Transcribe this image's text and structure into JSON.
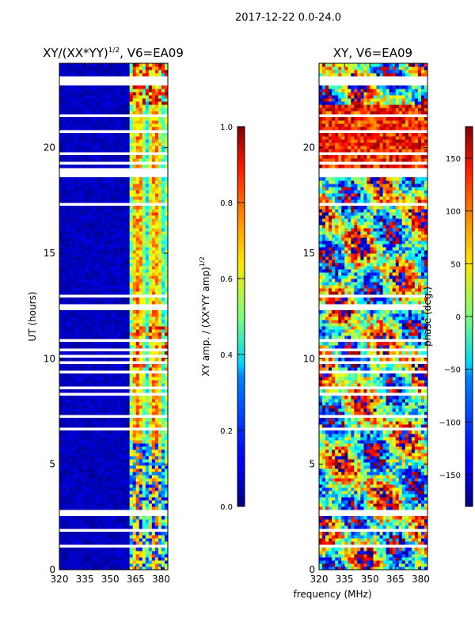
{
  "suptitle": "2017-12-22 0.0-24.0",
  "chart_data": [
    {
      "type": "heatmap",
      "title": "XY/(XX*YY)",
      "title_exponent": "1/2",
      "title_suffix": ", V6=EA09",
      "xlabel": "",
      "ylabel": "UT (hours)",
      "xlim": [
        320,
        384
      ],
      "ylim": [
        0,
        24
      ],
      "xticks": [
        320,
        335,
        350,
        365,
        380
      ],
      "yticks": [
        0,
        5,
        10,
        15,
        20
      ],
      "colorbar": {
        "label": "XY amp. / (XX*YY amp)",
        "label_exponent": "1/2",
        "range": [
          0.0,
          1.0
        ],
        "ticks": [
          "0.0",
          "0.2",
          "0.4",
          "0.6",
          "0.8",
          "1.0"
        ],
        "colormap": "jet"
      }
    },
    {
      "type": "heatmap",
      "title": "XY, V6=EA09",
      "xlabel": "",
      "ylabel": "",
      "xlim": [
        320,
        384
      ],
      "ylim": [
        0,
        24
      ],
      "xticks": [
        320,
        335,
        350,
        365,
        380
      ],
      "yticks": [
        0,
        5,
        10,
        15,
        20
      ],
      "colorbar": {
        "label": "phase (deg.)",
        "range": [
          -180,
          180
        ],
        "ticks": [
          "150",
          "100",
          "50",
          "0",
          "−50",
          "−100",
          "−150"
        ],
        "colormap": "jet"
      }
    }
  ],
  "shared_xlabel": "frequency (MHz)"
}
